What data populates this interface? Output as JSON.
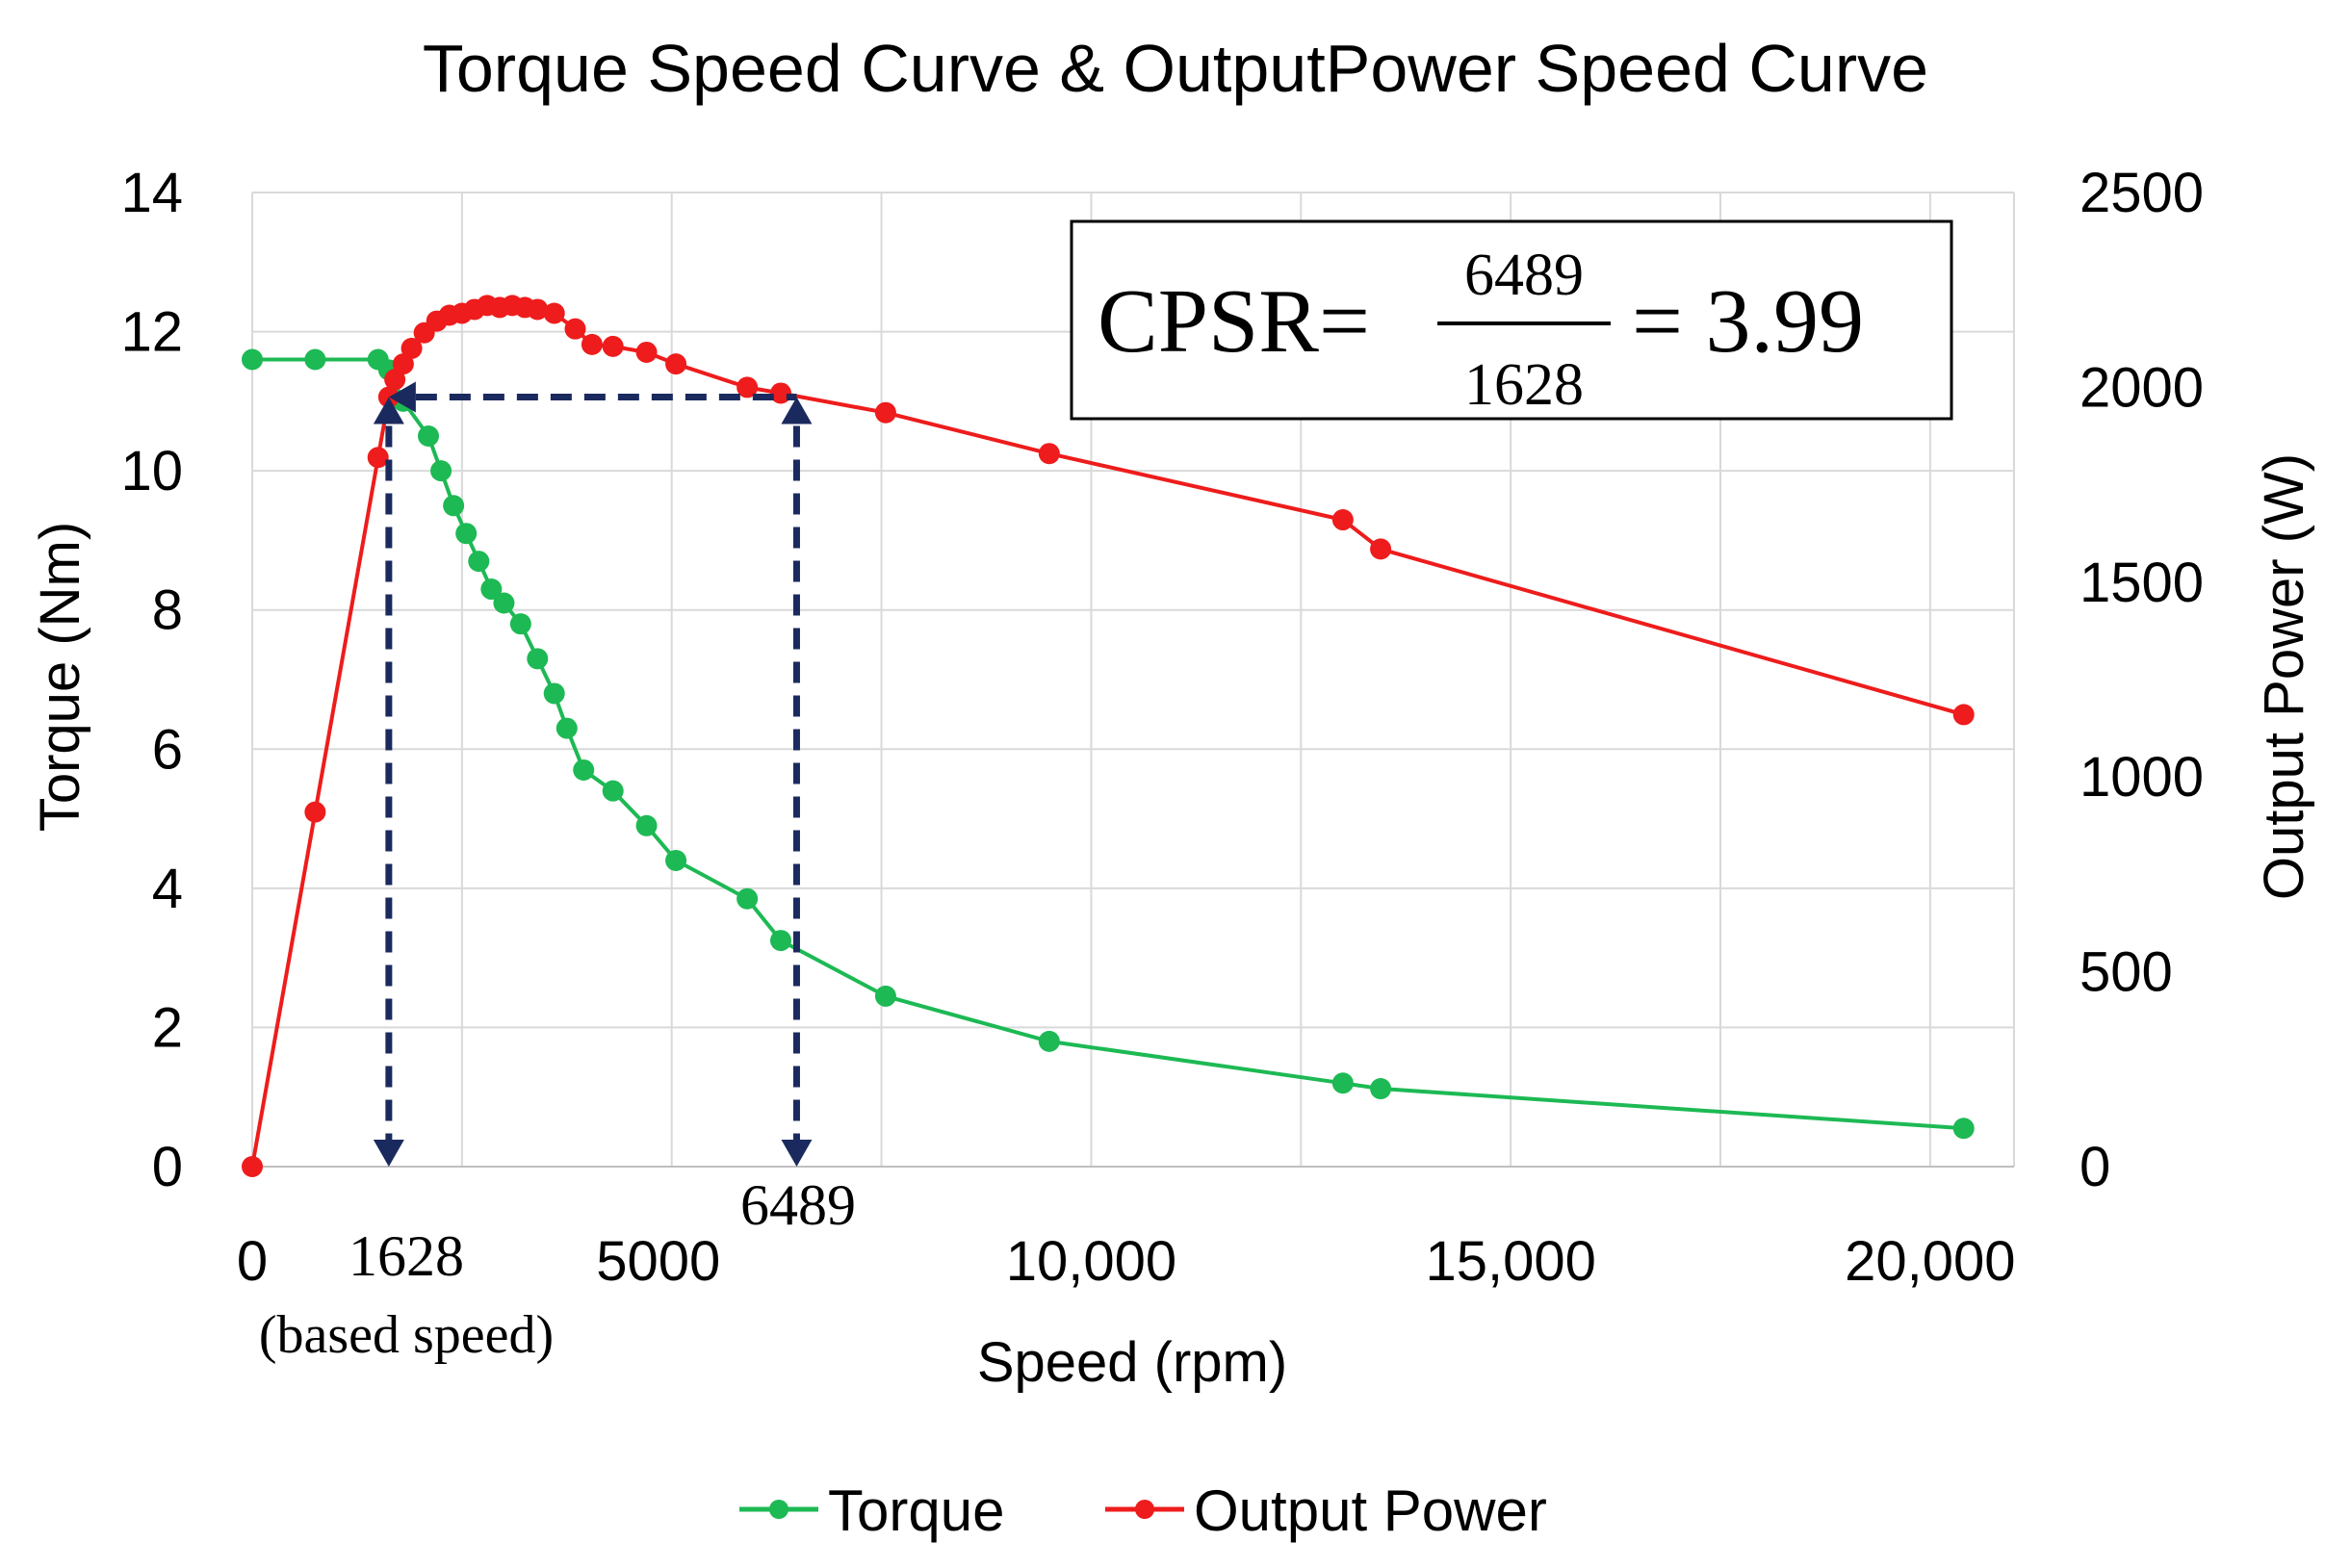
{
  "chart_data": {
    "type": "line",
    "title": "Torque Speed Curve & OutputPower Speed Curve",
    "xlabel": "Speed (rpm)",
    "ylabel": "Torque (Nm)",
    "y2label": "Output Power (W)",
    "xlim": [
      0,
      21000
    ],
    "ylim": [
      0,
      14
    ],
    "y2lim": [
      0,
      2500
    ],
    "x_ticks": [
      {
        "value": 0,
        "label": "0"
      },
      {
        "value": 5000,
        "label": "5000"
      },
      {
        "value": 10000,
        "label": "10,000"
      },
      {
        "value": 15000,
        "label": "15,000"
      },
      {
        "value": 20000,
        "label": "20,000"
      }
    ],
    "y_ticks": [
      "0",
      "2",
      "4",
      "6",
      "8",
      "10",
      "12",
      "14"
    ],
    "y2_ticks": [
      "0",
      "500",
      "1000",
      "1500",
      "2000",
      "2500"
    ],
    "grid": true,
    "legend_position": "bottom",
    "series": [
      {
        "name": "Torque",
        "axis": "left",
        "color": "#1db954",
        "x": [
          0,
          750,
          1500,
          1628,
          1800,
          2100,
          2250,
          2400,
          2550,
          2700,
          2850,
          3000,
          3200,
          3400,
          3600,
          3750,
          3950,
          4300,
          4700,
          5050,
          5900,
          6300,
          7550,
          9500,
          13000,
          13450,
          20400
        ],
        "y": [
          11.6,
          11.6,
          11.6,
          11.45,
          11.0,
          10.5,
          10.0,
          9.5,
          9.1,
          8.7,
          8.3,
          8.1,
          7.8,
          7.3,
          6.8,
          6.3,
          5.7,
          5.4,
          4.9,
          4.4,
          3.85,
          3.25,
          2.45,
          1.8,
          1.2,
          1.12,
          0.55
        ]
      },
      {
        "name": "Output Power",
        "axis": "right",
        "color": "#ee1c1c",
        "x": [
          0,
          750,
          1500,
          1628,
          1700,
          1800,
          1900,
          2050,
          2200,
          2350,
          2500,
          2650,
          2800,
          2950,
          3100,
          3250,
          3400,
          3600,
          3850,
          4050,
          4300,
          4700,
          5050,
          5900,
          6300,
          7550,
          9500,
          13000,
          13450,
          20400
        ],
        "y": [
          0,
          910,
          1820,
          1975,
          2020,
          2060,
          2100,
          2140,
          2170,
          2185,
          2190,
          2200,
          2210,
          2205,
          2210,
          2205,
          2200,
          2190,
          2150,
          2110,
          2105,
          2090,
          2060,
          2000,
          1985,
          1935,
          1830,
          1660,
          1585,
          1160
        ]
      }
    ],
    "annotations": {
      "formula_lhs": "CPSR=",
      "formula_numerator": "6489",
      "formula_denominator": "1628",
      "formula_rhs": "= 3.99",
      "base_speed_value": 1628,
      "base_speed_label": "1628",
      "base_speed_note": "(based speed)",
      "max_speed_value": 6489,
      "max_speed_label": "6489",
      "marker_power_level": 1975,
      "arrow_color": "#1b2a5e"
    }
  }
}
